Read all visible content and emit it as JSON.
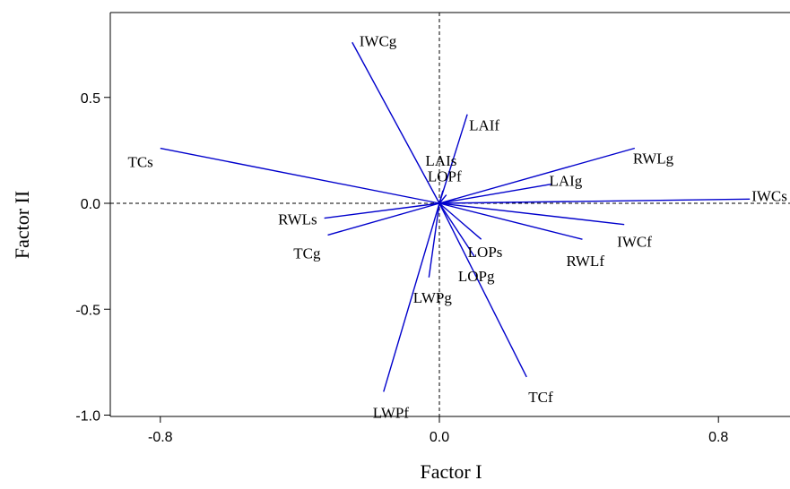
{
  "chart_data": {
    "type": "biplot",
    "xlabel": "Factor I",
    "ylabel": "Factor II",
    "xlim": [
      -0.92,
      0.9
    ],
    "ylim": [
      -1.03,
      0.9
    ],
    "x_ticks": [
      -0.8,
      0.0,
      0.8
    ],
    "x_tick_labels": [
      "-0.8",
      "0.0",
      "0.8"
    ],
    "y_ticks": [
      -1.0,
      -0.5,
      0.0,
      0.5
    ],
    "y_tick_labels": [
      "-1.0",
      "-0.5",
      "0.0",
      "0.5"
    ],
    "reference_lines": {
      "x": 0,
      "y": 0,
      "style": "dashed"
    },
    "vector_color": "#0000cc",
    "vectors": [
      {
        "name": "IWCg",
        "x": -0.25,
        "y": 0.76
      },
      {
        "name": "LAIf",
        "x": 0.08,
        "y": 0.42
      },
      {
        "name": "TCs",
        "x": -0.8,
        "y": 0.26
      },
      {
        "name": "RWLg",
        "x": 0.56,
        "y": 0.26
      },
      {
        "name": "LAIs",
        "x": 0.01,
        "y": 0.06
      },
      {
        "name": "LOPf",
        "x": 0.02,
        "y": 0.04
      },
      {
        "name": "LAIg",
        "x": 0.32,
        "y": 0.09
      },
      {
        "name": "IWCs",
        "x": 0.89,
        "y": 0.02
      },
      {
        "name": "RWLs",
        "x": -0.33,
        "y": -0.07
      },
      {
        "name": "TCg",
        "x": -0.32,
        "y": -0.15
      },
      {
        "name": "IWCf",
        "x": 0.53,
        "y": -0.1
      },
      {
        "name": "RWLf",
        "x": 0.41,
        "y": -0.17
      },
      {
        "name": "LOPs",
        "x": 0.12,
        "y": -0.17
      },
      {
        "name": "LOPg",
        "x": 0.1,
        "y": -0.25
      },
      {
        "name": "LWPg",
        "x": -0.03,
        "y": -0.35
      },
      {
        "name": "LWPf",
        "x": -0.16,
        "y": -0.89
      },
      {
        "name": "TCf",
        "x": 0.25,
        "y": -0.82
      }
    ]
  }
}
